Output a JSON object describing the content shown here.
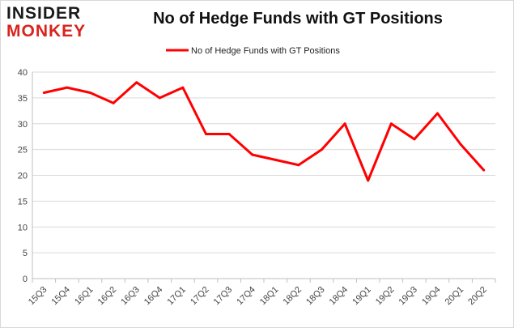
{
  "logo": {
    "line1": "INSIDER",
    "line2": "MONKEY"
  },
  "chart_data": {
    "type": "line",
    "title": "No of Hedge Funds with GT Positions",
    "categories": [
      "15Q3",
      "15Q4",
      "16Q1",
      "16Q2",
      "16Q3",
      "16Q4",
      "17Q1",
      "17Q2",
      "17Q3",
      "17Q4",
      "18Q1",
      "18Q2",
      "18Q3",
      "18Q4",
      "19Q1",
      "19Q2",
      "19Q3",
      "19Q4",
      "20Q1",
      "20Q2"
    ],
    "series": [
      {
        "name": "No of Hedge Funds with GT Positions",
        "color": "#ff0000",
        "values": [
          36,
          37,
          36,
          34,
          38,
          35,
          37,
          28,
          28,
          24,
          23,
          22,
          25,
          30,
          19,
          30,
          27,
          32,
          26,
          21
        ]
      }
    ],
    "ylim": [
      0,
      40
    ],
    "yticks": [
      0,
      5,
      10,
      15,
      20,
      25,
      30,
      35,
      40
    ],
    "xlabel": "",
    "ylabel": "",
    "grid": "horizontal",
    "legend": "top-center"
  }
}
